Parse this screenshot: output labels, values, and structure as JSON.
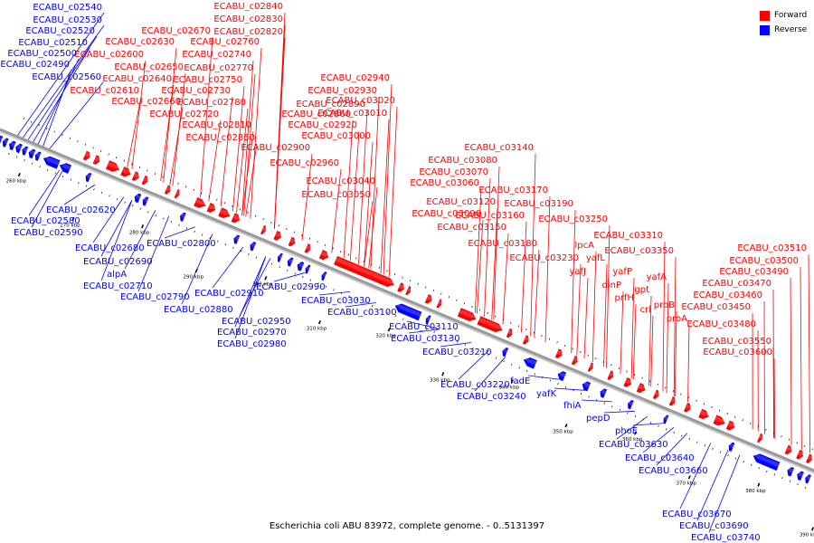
{
  "caption": "Escherichia coli ABU 83972, complete genome. - 0..5131397",
  "legend": [
    {
      "label": "Forward",
      "color": "#ff0000"
    },
    {
      "label": "Reverse",
      "color": "#0000ff"
    }
  ],
  "colors": {
    "forward": "#ff0000",
    "reverse": "#0000ff",
    "genome_line": "#9a9a9a",
    "tick": "#000000"
  },
  "scale": {
    "unit": "kbp",
    "ticks": [
      "260 kbp",
      "270 kbp",
      "280 kbp",
      "290 kbp",
      "300 kbp",
      "310 kbp",
      "320 kbp",
      "330 kbp",
      "340 kbp",
      "350 kbp",
      "360 kbp",
      "370 kbp",
      "380 kbp",
      "390 kbp"
    ]
  },
  "forward_labels": [
    "ECABU_c02840",
    "ECABU_c02830",
    "ECABU_c02820",
    "ECABU_c02670",
    "ECABU_c02630",
    "ECABU_c02760",
    "ECABU_c02600",
    "ECABU_c02740",
    "ECABU_c02650",
    "ECABU_c02770",
    "ECABU_c02640",
    "ECABU_c02750",
    "ECABU_c02610",
    "ECABU_c02730",
    "ECABU_c02660",
    "ECABU_c02780",
    "ECABU_c02720",
    "ECABU_c02810",
    "ECABU_c02850",
    "ECABU_c02900",
    "ECABU_c02940",
    "ECABU_c02930",
    "ECABU_c03020",
    "ECABU_c02890",
    "ECABU_c02860",
    "ECABU_c03010",
    "ECABU_c02920",
    "ECABU_c03000",
    "ECABU_c02960",
    "ECABU_c03040",
    "ECABU_c03050",
    "ECABU_c03140",
    "ECABU_c03080",
    "ECABU_c03070",
    "ECABU_c03060",
    "ECABU_c03170",
    "ECABU_c03120",
    "ECABU_c03190",
    "ECABU_c03090",
    "ECABU_c03160",
    "ECABU_c03250",
    "ECABU_c03150",
    "ECABU_c03310",
    "ECABU_c03180",
    "lpcA",
    "ECABU_c03350",
    "ECABU_c03230",
    "yafL",
    "yafJ",
    "yafP",
    "yafA",
    "dinP",
    "gpt",
    "prfH",
    "proB",
    "crl",
    "proA",
    "ECABU_c03510",
    "ECABU_c03500",
    "ECABU_c03490",
    "ECABU_c03470",
    "ECABU_c03460",
    "ECABU_c03450",
    "ECABU_c03480",
    "ECABU_c03550",
    "ECABU_c03600"
  ],
  "reverse_labels": [
    "ECABU_c02540",
    "ECABU_c02530",
    "ECABU_c02520",
    "ECABU_c02510",
    "ECABU_c02500",
    "ECABU_c02490",
    "ECABU_c02560",
    "ECABU_c02620",
    "ECABU_c02580",
    "ECABU_c02590",
    "ECABU_c02800",
    "ECABU_c02680",
    "ECABU_c02690",
    "alpA",
    "ECABU_c02710",
    "ECABU_c02790",
    "ECABU_c02910",
    "ECABU_c02880",
    "ECABU_c02990",
    "ECABU_c02950",
    "ECABU_c02970",
    "ECABU_c02980",
    "ECABU_c03030",
    "ECABU_c03100",
    "ECABU_c03110",
    "ECABU_c03130",
    "ECABU_c03210",
    "ECABU_c03220",
    "fadE",
    "ECABU_c03240",
    "yafK",
    "fhiA",
    "pepD",
    "phoE",
    "ECABU_c03630",
    "ECABU_c03640",
    "ECABU_c03660",
    "ECABU_c03670",
    "ECABU_c03690",
    "ECABU_c03740"
  ]
}
